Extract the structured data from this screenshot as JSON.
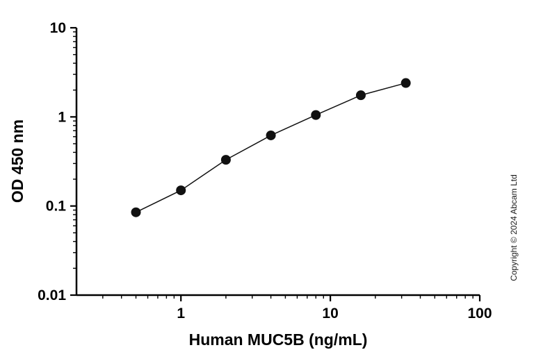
{
  "chart_data": {
    "type": "line",
    "x": [
      0.5,
      1,
      2,
      4,
      8,
      16,
      32
    ],
    "y": [
      0.085,
      0.15,
      0.33,
      0.62,
      1.05,
      1.75,
      2.4
    ],
    "title": "",
    "xlabel": "Human MUC5B (ng/mL)",
    "ylabel": "OD 450 nm",
    "xlim": [
      0.2,
      100
    ],
    "ylim": [
      0.01,
      10
    ],
    "xscale": "log",
    "yscale": "log",
    "x_ticks": [
      1,
      10,
      100
    ],
    "x_tick_labels": [
      "1",
      "10",
      "100"
    ],
    "y_ticks": [
      0.01,
      0.1,
      1,
      10
    ],
    "y_tick_labels": [
      "0.01",
      "0.1",
      "1",
      "10"
    ],
    "grid": false,
    "legend": "none",
    "marker": "circle",
    "marker_color": "#111111",
    "line_color": "#111111"
  },
  "annotations": {
    "copyright": "Copyright © 2024 Abcam Ltd"
  }
}
